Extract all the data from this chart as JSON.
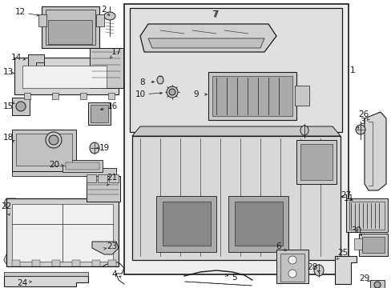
{
  "fig_width": 4.89,
  "fig_height": 3.6,
  "dpi": 100,
  "bg_color": "#ffffff",
  "line_color": "#1a1a1a",
  "fill_color": "#e8e8e8",
  "dark_fill": "#c8c8c8",
  "font_size": 7.5
}
